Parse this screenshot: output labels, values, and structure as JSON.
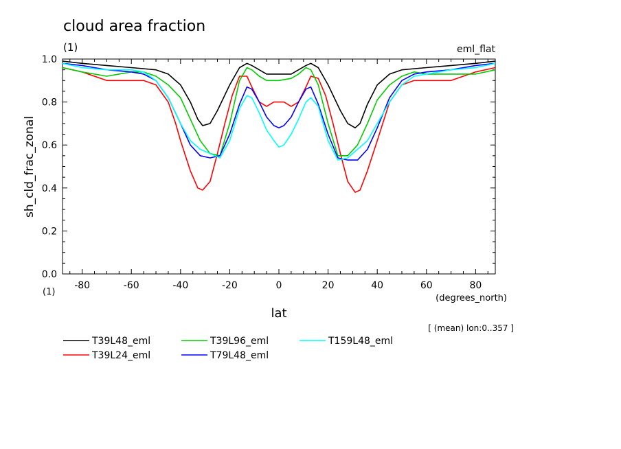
{
  "chart_data": {
    "type": "line",
    "title": "cloud area fraction",
    "title_units": "(1)",
    "corner_label": "eml_flat",
    "xlabel": "lat",
    "xunits": "(degrees_north)",
    "ylabel": "sh_cld_frac_zonal",
    "yunits": "(1)",
    "subtitle": "[ (mean) lon:0..357 ]",
    "xlim": [
      -88,
      88
    ],
    "ylim": [
      0.0,
      1.0
    ],
    "xticks": [
      "-80",
      "-60",
      "-40",
      "-20",
      "0",
      "20",
      "40",
      "60",
      "80"
    ],
    "yticks": [
      "0.0",
      "0.2",
      "0.4",
      "0.6",
      "0.8",
      "1.0"
    ],
    "grid": false,
    "legend_position": "bottom",
    "series": [
      {
        "name": "T39L48_eml",
        "color": "#000000",
        "x": [
          -88,
          -80,
          -70,
          -60,
          -50,
          -45,
          -40,
          -36,
          -33,
          -31,
          -28,
          -25,
          -20,
          -16,
          -13,
          -11,
          -8,
          -5,
          0,
          5,
          8,
          11,
          13,
          16,
          20,
          25,
          28,
          31,
          33,
          36,
          40,
          45,
          50,
          60,
          70,
          80,
          88
        ],
        "y": [
          0.99,
          0.98,
          0.97,
          0.96,
          0.95,
          0.93,
          0.88,
          0.8,
          0.72,
          0.69,
          0.7,
          0.76,
          0.88,
          0.96,
          0.98,
          0.97,
          0.95,
          0.93,
          0.93,
          0.93,
          0.95,
          0.97,
          0.98,
          0.96,
          0.88,
          0.76,
          0.7,
          0.68,
          0.7,
          0.79,
          0.88,
          0.93,
          0.95,
          0.96,
          0.97,
          0.98,
          0.99
        ]
      },
      {
        "name": "T39L24_eml",
        "color": "#ff0000",
        "x": [
          -88,
          -80,
          -70,
          -60,
          -55,
          -50,
          -45,
          -42,
          -40,
          -36,
          -33,
          -31,
          -28,
          -25,
          -22,
          -19,
          -16,
          -13,
          -11,
          -8,
          -5,
          -2,
          0,
          2,
          5,
          8,
          11,
          13,
          16,
          19,
          22,
          25,
          28,
          31,
          33,
          36,
          40,
          45,
          50,
          55,
          60,
          70,
          80,
          88
        ],
        "y": [
          0.96,
          0.94,
          0.9,
          0.9,
          0.9,
          0.88,
          0.8,
          0.7,
          0.62,
          0.48,
          0.4,
          0.39,
          0.43,
          0.56,
          0.7,
          0.83,
          0.92,
          0.92,
          0.87,
          0.8,
          0.78,
          0.8,
          0.8,
          0.8,
          0.78,
          0.8,
          0.87,
          0.92,
          0.91,
          0.83,
          0.7,
          0.56,
          0.43,
          0.38,
          0.39,
          0.48,
          0.62,
          0.8,
          0.88,
          0.9,
          0.9,
          0.9,
          0.94,
          0.96
        ]
      },
      {
        "name": "T39L96_eml",
        "color": "#00cc00",
        "x": [
          -88,
          -80,
          -70,
          -60,
          -55,
          -50,
          -45,
          -40,
          -36,
          -32,
          -28,
          -24,
          -20,
          -16,
          -13,
          -11,
          -8,
          -5,
          0,
          5,
          8,
          11,
          13,
          16,
          20,
          24,
          28,
          32,
          36,
          40,
          45,
          50,
          55,
          60,
          70,
          80,
          88
        ],
        "y": [
          0.96,
          0.94,
          0.92,
          0.94,
          0.94,
          0.92,
          0.88,
          0.82,
          0.72,
          0.62,
          0.56,
          0.55,
          0.7,
          0.9,
          0.96,
          0.95,
          0.92,
          0.9,
          0.9,
          0.91,
          0.93,
          0.96,
          0.95,
          0.88,
          0.7,
          0.55,
          0.55,
          0.6,
          0.7,
          0.81,
          0.88,
          0.92,
          0.94,
          0.93,
          0.93,
          0.93,
          0.95
        ]
      },
      {
        "name": "T79L48_eml",
        "color": "#0000ff",
        "x": [
          -88,
          -80,
          -70,
          -60,
          -55,
          -50,
          -45,
          -40,
          -36,
          -32,
          -28,
          -24,
          -20,
          -16,
          -13,
          -11,
          -8,
          -5,
          -2,
          0,
          2,
          5,
          8,
          11,
          13,
          16,
          20,
          24,
          28,
          32,
          36,
          40,
          45,
          50,
          55,
          60,
          70,
          80,
          88
        ],
        "y": [
          0.98,
          0.97,
          0.95,
          0.94,
          0.93,
          0.9,
          0.82,
          0.7,
          0.6,
          0.55,
          0.54,
          0.55,
          0.65,
          0.79,
          0.87,
          0.86,
          0.8,
          0.73,
          0.69,
          0.68,
          0.69,
          0.73,
          0.8,
          0.86,
          0.87,
          0.79,
          0.65,
          0.54,
          0.53,
          0.53,
          0.58,
          0.68,
          0.82,
          0.9,
          0.93,
          0.94,
          0.95,
          0.97,
          0.98
        ]
      },
      {
        "name": "T159L48_eml",
        "color": "#00ffff",
        "x": [
          -88,
          -80,
          -70,
          -60,
          -55,
          -50,
          -45,
          -40,
          -36,
          -32,
          -28,
          -24,
          -20,
          -16,
          -13,
          -11,
          -8,
          -5,
          -2,
          0,
          2,
          5,
          8,
          11,
          13,
          16,
          20,
          24,
          28,
          32,
          36,
          40,
          45,
          50,
          55,
          60,
          70,
          80,
          88
        ],
        "y": [
          0.98,
          0.96,
          0.95,
          0.95,
          0.94,
          0.9,
          0.82,
          0.7,
          0.62,
          0.58,
          0.56,
          0.54,
          0.62,
          0.77,
          0.83,
          0.82,
          0.75,
          0.67,
          0.62,
          0.59,
          0.6,
          0.65,
          0.72,
          0.8,
          0.82,
          0.78,
          0.62,
          0.53,
          0.54,
          0.58,
          0.62,
          0.7,
          0.8,
          0.88,
          0.92,
          0.93,
          0.95,
          0.96,
          0.98
        ]
      }
    ]
  }
}
